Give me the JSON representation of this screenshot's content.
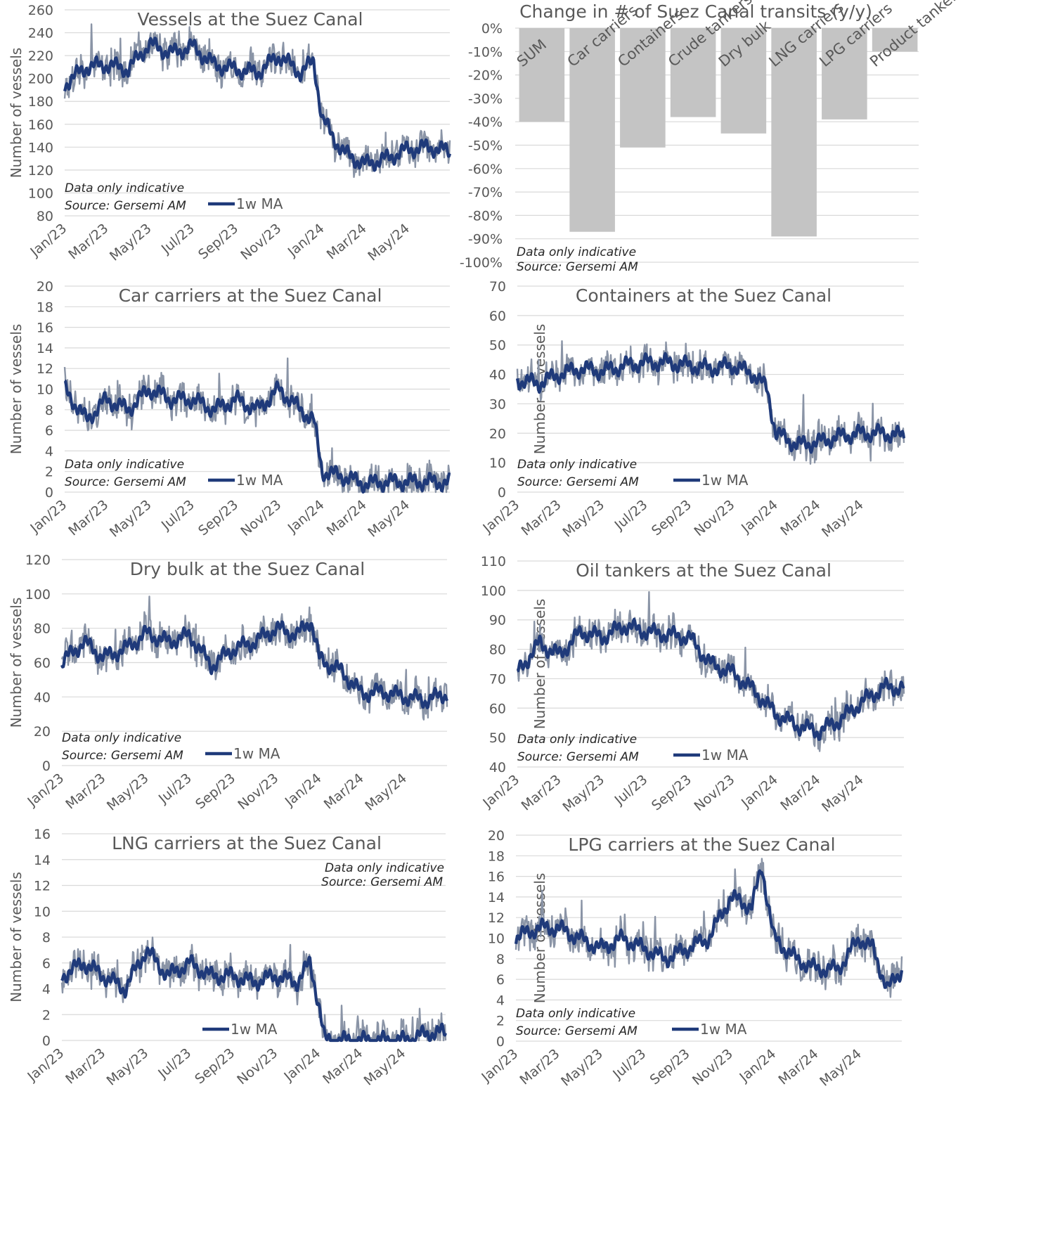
{
  "chart_data": [
    {
      "type": "line",
      "title": "Vessels at the Suez Canal",
      "ylabel": "Number of vessels",
      "ylim": [
        80,
        260
      ],
      "yticks": [
        80,
        100,
        120,
        140,
        160,
        180,
        200,
        220,
        240,
        260
      ],
      "x_tick_labels": [
        "Jan/23",
        "Mar/23",
        "May/23",
        "Jul/23",
        "Sep/23",
        "Nov/23",
        "Jan/24",
        "Mar/24",
        "May/24"
      ],
      "x_range": [
        "2023-01-01",
        "2024-06-30"
      ],
      "notes": [
        "Data only indicative",
        "Source: Gersemi AM"
      ],
      "legend": "1w MA",
      "legend_position": "bottom-left",
      "series": [
        {
          "name": "1w MA",
          "x": [
            "2023-01-01",
            "2023-02-01",
            "2023-03-01",
            "2023-04-01",
            "2023-05-01",
            "2023-06-01",
            "2023-07-01",
            "2023-08-01",
            "2023-09-01",
            "2023-10-01",
            "2023-11-01",
            "2023-12-01",
            "2023-12-20",
            "2024-01-01",
            "2024-01-15",
            "2024-02-01",
            "2024-03-01",
            "2024-04-01",
            "2024-05-01",
            "2024-06-01",
            "2024-06-30"
          ],
          "values": [
            195,
            210,
            212,
            208,
            230,
            222,
            228,
            212,
            208,
            205,
            220,
            205,
            215,
            165,
            150,
            135,
            125,
            130,
            138,
            140,
            136
          ]
        }
      ]
    },
    {
      "type": "bar",
      "title": "Change in # of Suez Canal transits (y/y)",
      "categories": [
        "SUM",
        "Car carriers",
        "Containers",
        "Crude tankers",
        "Dry bulk",
        "LNG carriers",
        "LPG carriers",
        "Product tankers"
      ],
      "values": [
        -40,
        -87,
        -51,
        -38,
        -45,
        -89,
        -39,
        -10
      ],
      "ylim": [
        -100,
        0
      ],
      "yticks": [
        0,
        -10,
        -20,
        -30,
        -40,
        -50,
        -60,
        -70,
        -80,
        -90,
        -100
      ],
      "ytick_suffix": "%",
      "notes": [
        "Data only indicative",
        "Source: Gersemi AM"
      ]
    },
    {
      "type": "line",
      "title": "Car carriers at the Suez Canal",
      "ylabel": "Number of vessels",
      "ylim": [
        0,
        20
      ],
      "yticks": [
        0,
        2,
        4,
        6,
        8,
        10,
        12,
        14,
        16,
        18,
        20
      ],
      "x_tick_labels": [
        "Jan/23",
        "Mar/23",
        "May/23",
        "Jul/23",
        "Sep/23",
        "Nov/23",
        "Jan/24",
        "Mar/24",
        "May/24"
      ],
      "x_range": [
        "2023-01-01",
        "2024-06-30"
      ],
      "notes": [
        "Data only indicative",
        "Source: Gersemi AM"
      ],
      "legend": "1w MA",
      "legend_position": "bottom-left",
      "series": [
        {
          "name": "1w MA",
          "x": [
            "2023-01-01",
            "2023-02-01",
            "2023-03-01",
            "2023-04-01",
            "2023-05-01",
            "2023-06-01",
            "2023-07-01",
            "2023-08-01",
            "2023-09-01",
            "2023-10-01",
            "2023-11-01",
            "2023-12-01",
            "2023-12-20",
            "2024-01-01",
            "2024-02-01",
            "2024-03-01",
            "2024-04-01",
            "2024-05-01",
            "2024-06-01",
            "2024-06-30"
          ],
          "values": [
            10,
            7,
            9,
            8,
            10,
            9,
            9,
            8,
            9,
            8,
            10,
            8,
            7,
            2,
            1.5,
            0.8,
            1,
            1,
            1,
            0.9
          ]
        }
      ]
    },
    {
      "type": "line",
      "title": "Containers at the Suez Canal",
      "ylabel": "Number of vessels",
      "ylim": [
        0,
        70
      ],
      "yticks": [
        0,
        10,
        20,
        30,
        40,
        50,
        60,
        70
      ],
      "x_tick_labels": [
        "Jan/23",
        "Mar/23",
        "May/23",
        "Jul/23",
        "Sep/23",
        "Nov/23",
        "Jan/24",
        "Mar/24",
        "May/24"
      ],
      "x_range": [
        "2023-01-01",
        "2024-06-30"
      ],
      "notes": [
        "Data only indicative",
        "Source: Gersemi AM"
      ],
      "legend": "1w MA",
      "legend_position": "bottom-left",
      "series": [
        {
          "name": "1w MA",
          "x": [
            "2023-01-01",
            "2023-02-01",
            "2023-03-01",
            "2023-04-01",
            "2023-05-01",
            "2023-06-01",
            "2023-07-01",
            "2023-08-01",
            "2023-09-01",
            "2023-10-01",
            "2023-11-01",
            "2023-12-01",
            "2023-12-20",
            "2024-01-01",
            "2024-02-01",
            "2024-03-01",
            "2024-04-01",
            "2024-05-01",
            "2024-06-01",
            "2024-06-30"
          ],
          "values": [
            38,
            37,
            40,
            42,
            41,
            43,
            44,
            44,
            43,
            42,
            43,
            40,
            35,
            20,
            16,
            17,
            19,
            20,
            20,
            19
          ]
        }
      ]
    },
    {
      "type": "line",
      "title": "Dry bulk at the Suez Canal",
      "ylabel": "Number of vessels",
      "ylim": [
        0,
        120
      ],
      "yticks": [
        0,
        20,
        40,
        60,
        80,
        100,
        120
      ],
      "x_tick_labels": [
        "Jan/23",
        "Mar/23",
        "May/23",
        "Jul/23",
        "Sep/23",
        "Nov/23",
        "Jan/24",
        "Mar/24",
        "May/24"
      ],
      "x_range": [
        "2023-01-01",
        "2024-06-30"
      ],
      "notes": [
        "Data only indicative",
        "Source: Gersemi AM"
      ],
      "legend": "1w MA",
      "legend_position": "bottom-left",
      "series": [
        {
          "name": "1w MA",
          "x": [
            "2023-01-01",
            "2023-02-01",
            "2023-03-01",
            "2023-04-01",
            "2023-05-01",
            "2023-06-01",
            "2023-07-01",
            "2023-08-01",
            "2023-09-01",
            "2023-10-01",
            "2023-11-01",
            "2023-12-01",
            "2023-12-20",
            "2024-01-01",
            "2024-02-01",
            "2024-03-01",
            "2024-04-01",
            "2024-05-01",
            "2024-06-01",
            "2024-06-30"
          ],
          "values": [
            60,
            72,
            63,
            68,
            77,
            72,
            76,
            58,
            68,
            72,
            80,
            76,
            85,
            62,
            55,
            42,
            43,
            40,
            38,
            42
          ]
        }
      ]
    },
    {
      "type": "line",
      "title": "Oil tankers at the Suez Canal",
      "ylabel": "Number of vessels",
      "ylim": [
        40,
        110
      ],
      "yticks": [
        40,
        50,
        60,
        70,
        80,
        90,
        100,
        110
      ],
      "x_tick_labels": [
        "Jan/23",
        "Mar/23",
        "May/23",
        "Jul/23",
        "Sep/23",
        "Nov/23",
        "Jan/24",
        "Mar/24",
        "May/24"
      ],
      "x_range": [
        "2023-01-01",
        "2024-06-30"
      ],
      "notes": [
        "Data only indicative",
        "Source: Gersemi AM"
      ],
      "legend": "1w MA",
      "legend_position": "bottom-left",
      "series": [
        {
          "name": "1w MA",
          "x": [
            "2023-01-01",
            "2023-02-01",
            "2023-03-01",
            "2023-04-01",
            "2023-05-01",
            "2023-06-01",
            "2023-07-01",
            "2023-08-01",
            "2023-09-01",
            "2023-10-01",
            "2023-11-01",
            "2023-12-01",
            "2024-01-01",
            "2024-02-01",
            "2024-03-01",
            "2024-04-01",
            "2024-05-01",
            "2024-06-01",
            "2024-06-30"
          ],
          "values": [
            72,
            82,
            78,
            86,
            84,
            88,
            86,
            85,
            84,
            75,
            72,
            66,
            58,
            54,
            52,
            56,
            62,
            67,
            67
          ]
        }
      ]
    },
    {
      "type": "line",
      "title": "LNG carriers at the Suez Canal",
      "ylabel": "Number of vessels",
      "ylim": [
        0,
        16
      ],
      "yticks": [
        0,
        2,
        4,
        6,
        8,
        10,
        12,
        14,
        16
      ],
      "x_tick_labels": [
        "Jan/23",
        "Mar/23",
        "May/23",
        "Jul/23",
        "Sep/23",
        "Nov/23",
        "Jan/24",
        "Mar/24",
        "May/24"
      ],
      "x_range": [
        "2023-01-01",
        "2024-06-30"
      ],
      "notes": [
        "Data only indicative",
        "Source: Gersemi AM"
      ],
      "notes_position": "top-right",
      "legend": "1w MA",
      "legend_position": "bottom-center",
      "series": [
        {
          "name": "1w MA",
          "x": [
            "2023-01-01",
            "2023-02-01",
            "2023-03-01",
            "2023-04-01",
            "2023-05-01",
            "2023-06-01",
            "2023-07-01",
            "2023-08-01",
            "2023-09-01",
            "2023-10-01",
            "2023-11-01",
            "2023-12-01",
            "2023-12-20",
            "2024-01-01",
            "2024-01-10",
            "2024-02-01",
            "2024-03-01",
            "2024-04-01",
            "2024-05-01",
            "2024-05-20",
            "2024-06-10",
            "2024-06-30"
          ],
          "values": [
            5,
            6,
            5,
            4,
            7,
            5,
            6,
            5,
            5,
            4.5,
            5,
            4.5,
            6,
            3,
            0,
            0,
            0,
            0,
            0,
            0.3,
            0.6,
            0.6
          ]
        }
      ]
    },
    {
      "type": "line",
      "title": "LPG carriers at the Suez Canal",
      "ylabel": "Number of vessels",
      "ylim": [
        0,
        20
      ],
      "yticks": [
        0,
        2,
        4,
        6,
        8,
        10,
        12,
        14,
        16,
        18,
        20
      ],
      "x_tick_labels": [
        "Jan/23",
        "Mar/23",
        "May/23",
        "Jul/23",
        "Sep/23",
        "Nov/23",
        "Jan/24",
        "Mar/24",
        "May/24"
      ],
      "x_range": [
        "2023-01-01",
        "2024-06-30"
      ],
      "notes": [
        "Data only indicative",
        "Source: Gersemi AM"
      ],
      "legend": "1w MA",
      "legend_position": "bottom-left",
      "series": [
        {
          "name": "1w MA",
          "x": [
            "2023-01-01",
            "2023-02-01",
            "2023-03-01",
            "2023-04-01",
            "2023-05-01",
            "2023-06-01",
            "2023-07-01",
            "2023-08-01",
            "2023-09-01",
            "2023-10-01",
            "2023-11-01",
            "2023-12-01",
            "2023-12-15",
            "2024-01-01",
            "2024-02-01",
            "2024-03-01",
            "2024-04-01",
            "2024-05-01",
            "2024-05-20",
            "2024-06-10",
            "2024-06-30"
          ],
          "values": [
            10,
            11,
            11,
            10,
            9,
            10,
            9,
            8,
            9,
            10,
            14,
            13,
            17,
            10,
            8,
            7,
            7,
            10,
            9,
            5,
            7
          ]
        }
      ]
    }
  ]
}
